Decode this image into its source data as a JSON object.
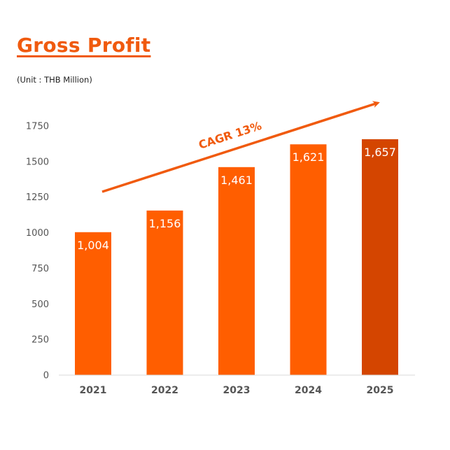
{
  "header": {
    "title": "Gross Profit",
    "unit": "(Unit : THB Million)"
  },
  "chart_data": {
    "type": "bar",
    "categories": [
      "2021",
      "2022",
      "2023",
      "2024",
      "2025"
    ],
    "values": [
      1004,
      1156,
      1461,
      1621,
      1657
    ],
    "data_labels": [
      "1,004",
      "1,156",
      "1,461",
      "1,621",
      "1,657"
    ],
    "yticks": [
      0,
      250,
      500,
      750,
      1000,
      1250,
      1500,
      1750
    ],
    "ylim": [
      0,
      1750
    ],
    "grid": false,
    "annotation": "CAGR 13%",
    "colors": {
      "bar": "#ff5e00",
      "bar_highlight": "#d44500",
      "accent": "#f05a0e",
      "axis_text": "#555555"
    },
    "highlight_index": 4
  }
}
